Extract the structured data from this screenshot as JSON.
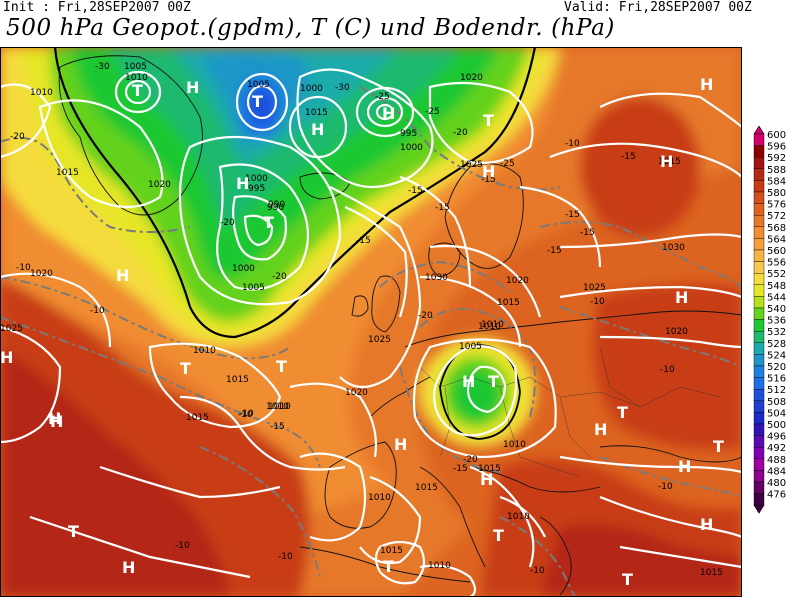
{
  "header": {
    "init": "Init : Fri,28SEP2007 00Z",
    "valid": "Valid: Fri,28SEP2007 00Z",
    "title": "500 hPa Geopot.(gpdm), T (C) und Bodendr. (hPa)"
  },
  "legend": {
    "values": [
      "600",
      "596",
      "592",
      "588",
      "584",
      "580",
      "576",
      "572",
      "568",
      "564",
      "560",
      "556",
      "552",
      "548",
      "544",
      "540",
      "536",
      "532",
      "528",
      "524",
      "520",
      "516",
      "512",
      "508",
      "504",
      "500",
      "496",
      "492",
      "488",
      "484",
      "480",
      "476"
    ],
    "colors": [
      "#d4006a",
      "#8c0000",
      "#a01414",
      "#b42814",
      "#c83c14",
      "#d2501e",
      "#dc6420",
      "#e6782a",
      "#f08c32",
      "#f5a03c",
      "#f7b446",
      "#f7c850",
      "#f5dc3c",
      "#e6e628",
      "#b4e01e",
      "#64d21e",
      "#1ec832",
      "#1eb96e",
      "#1eaaaa",
      "#1e96c8",
      "#1e82dc",
      "#1e6ee6",
      "#1e50dc",
      "#1e3cd2",
      "#1e28c8",
      "#3214b4",
      "#5a0ab4",
      "#8200b4",
      "#a000a0",
      "#8c008c",
      "#640064",
      "#400040"
    ]
  },
  "map": {
    "pressure_labels": [
      "1005",
      "1010",
      "1010",
      "1015",
      "1020",
      "1020",
      "1025",
      "1000",
      "995",
      "1000",
      "1005",
      "1015",
      "1000",
      "995",
      "990",
      "1000",
      "1005",
      "1020",
      "1025",
      "1030",
      "1010",
      "1020",
      "1025",
      "1010",
      "1015",
      "1010",
      "1020",
      "1015",
      "1010",
      "1005",
      "1010",
      "1015",
      "1010",
      "1015",
      "1025",
      "1030",
      "1015",
      "1020",
      "1010",
      "1015",
      "1010",
      "1015",
      "1010",
      "1015",
      "990"
    ],
    "temp_labels": [
      "-30",
      "-30",
      "-25",
      "-25",
      "-20",
      "-20",
      "-15",
      "-15",
      "-10",
      "-10",
      "-15",
      "-10",
      "-20",
      "-20",
      "-25",
      "-15",
      "-15",
      "-20",
      "-15",
      "-15",
      "-15",
      "-15",
      "-10",
      "-10",
      "-15",
      "-20",
      "-10",
      "-10",
      "-10",
      "-10",
      "-10",
      "-10"
    ],
    "centers": [
      "T",
      "H",
      "T",
      "H",
      "H",
      "T",
      "H",
      "H",
      "T",
      "H",
      "T",
      "T",
      "H",
      "H",
      "H",
      "T",
      "H",
      "T",
      "H",
      "H",
      "H",
      "H",
      "T",
      "T",
      "H",
      "T",
      "T",
      "H",
      "H",
      "H",
      "T",
      "H"
    ]
  }
}
